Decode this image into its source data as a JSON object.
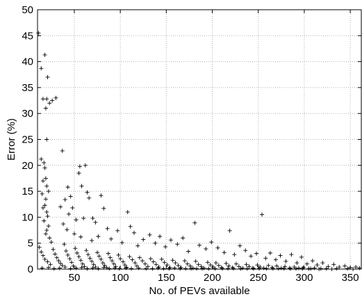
{
  "chart_data": {
    "type": "scatter",
    "title": "",
    "xlabel": "No. of PEVs available",
    "ylabel": "Error (%)",
    "xlim": [
      10,
      362
    ],
    "ylim": [
      0,
      50
    ],
    "grid": true,
    "marker": "+",
    "marker_color": "#000000",
    "xticks": [
      50,
      100,
      150,
      200,
      250,
      300,
      350
    ],
    "yticks": [
      0,
      5,
      10,
      15,
      20,
      25,
      30,
      35,
      40,
      45,
      50
    ],
    "series": [
      {
        "points": [
          [
            11,
            45.5
          ],
          [
            14,
            38.7
          ],
          [
            18,
            41.3
          ],
          [
            16,
            32.8
          ],
          [
            20,
            32.8
          ],
          [
            19,
            31.0
          ],
          [
            21,
            37.0
          ],
          [
            23,
            32.0
          ],
          [
            26,
            32.5
          ],
          [
            30,
            33.0
          ],
          [
            20,
            25.0
          ],
          [
            14,
            21.2
          ],
          [
            17,
            20.5
          ],
          [
            18,
            19.5
          ],
          [
            16,
            17.0
          ],
          [
            19,
            17.5
          ],
          [
            20,
            16.0
          ],
          [
            22,
            15.0
          ],
          [
            15,
            14.5
          ],
          [
            19,
            13.5
          ],
          [
            18,
            12.3
          ],
          [
            16,
            11.8
          ],
          [
            20,
            11.0
          ],
          [
            21,
            10.2
          ],
          [
            17,
            9.3
          ],
          [
            22,
            8.3
          ],
          [
            20,
            7.5
          ],
          [
            19,
            6.8
          ],
          [
            23,
            6.0
          ],
          [
            25,
            5.2
          ],
          [
            37,
            22.8
          ],
          [
            43,
            15.8
          ],
          [
            46,
            14.0
          ],
          [
            55,
            18.5
          ],
          [
            56,
            19.8
          ],
          [
            58,
            16.0
          ],
          [
            62,
            20.0
          ],
          [
            64,
            14.8
          ],
          [
            66,
            13.7
          ],
          [
            60,
            9.8
          ],
          [
            40,
            13.4
          ],
          [
            35,
            12.0
          ],
          [
            44,
            10.6
          ],
          [
            48,
            11.8
          ],
          [
            52,
            9.5
          ],
          [
            70,
            9.8
          ],
          [
            73,
            9.0
          ],
          [
            79,
            14.2
          ],
          [
            82,
            11.7
          ],
          [
            86,
            7.8
          ],
          [
            38,
            8.7
          ],
          [
            42,
            7.6
          ],
          [
            50,
            6.8
          ],
          [
            57,
            6.2
          ],
          [
            69,
            5.5
          ],
          [
            76,
            6.3
          ],
          [
            90,
            5.8
          ],
          [
            97,
            7.4
          ],
          [
            102,
            5.1
          ],
          [
            108,
            11.0
          ],
          [
            111,
            8.2
          ],
          [
            115,
            7.0
          ],
          [
            119,
            4.5
          ],
          [
            125,
            5.7
          ],
          [
            132,
            6.6
          ],
          [
            138,
            5.0
          ],
          [
            143,
            6.3
          ],
          [
            149,
            4.3
          ],
          [
            155,
            5.6
          ],
          [
            162,
            4.8
          ],
          [
            168,
            6.0
          ],
          [
            174,
            3.4
          ],
          [
            181,
            8.9
          ],
          [
            186,
            4.6
          ],
          [
            193,
            3.9
          ],
          [
            199,
            5.2
          ],
          [
            206,
            4.1
          ],
          [
            213,
            3.2
          ],
          [
            219,
            7.4
          ],
          [
            224,
            2.8
          ],
          [
            230,
            4.5
          ],
          [
            236,
            3.6
          ],
          [
            242,
            2.5
          ],
          [
            248,
            3.0
          ],
          [
            254,
            10.5
          ],
          [
            258,
            2.1
          ],
          [
            263,
            3.1
          ],
          [
            269,
            1.8
          ],
          [
            274,
            2.6
          ],
          [
            280,
            1.5
          ],
          [
            286,
            2.8
          ],
          [
            292,
            1.2
          ],
          [
            297,
            2.3
          ],
          [
            303,
            1.0
          ],
          [
            309,
            1.6
          ],
          [
            314,
            0.8
          ],
          [
            320,
            1.2
          ],
          [
            326,
            0.5
          ],
          [
            332,
            0.9
          ],
          [
            338,
            0.4
          ],
          [
            344,
            0.6
          ],
          [
            350,
            0.3
          ],
          [
            356,
            0.4
          ],
          [
            360,
            0.2
          ],
          [
            12,
            4.2
          ],
          [
            14,
            3.3
          ],
          [
            16,
            2.6
          ],
          [
            18,
            1.9
          ],
          [
            21,
            1.4
          ],
          [
            24,
            0.9
          ],
          [
            27,
            3.8
          ],
          [
            29,
            2.9
          ],
          [
            31,
            2.2
          ],
          [
            33,
            1.6
          ],
          [
            35,
            1.1
          ],
          [
            37,
            0.7
          ],
          [
            39,
            4.8
          ],
          [
            41,
            3.5
          ],
          [
            43,
            2.7
          ],
          [
            45,
            2.0
          ],
          [
            47,
            1.3
          ],
          [
            49,
            0.6
          ],
          [
            51,
            4.0
          ],
          [
            53,
            3.1
          ],
          [
            55,
            2.4
          ],
          [
            57,
            1.7
          ],
          [
            59,
            1.0
          ],
          [
            61,
            0.5
          ],
          [
            63,
            3.6
          ],
          [
            65,
            2.8
          ],
          [
            67,
            2.1
          ],
          [
            69,
            1.5
          ],
          [
            71,
            0.9
          ],
          [
            73,
            0.4
          ],
          [
            75,
            3.2
          ],
          [
            77,
            2.5
          ],
          [
            79,
            1.9
          ],
          [
            81,
            1.2
          ],
          [
            83,
            0.7
          ],
          [
            85,
            0.3
          ],
          [
            87,
            3.0
          ],
          [
            89,
            2.2
          ],
          [
            91,
            1.6
          ],
          [
            93,
            1.0
          ],
          [
            95,
            0.5
          ],
          [
            98,
            2.7
          ],
          [
            100,
            2.0
          ],
          [
            103,
            1.4
          ],
          [
            105,
            0.8
          ],
          [
            107,
            0.3
          ],
          [
            110,
            2.4
          ],
          [
            113,
            1.8
          ],
          [
            116,
            1.2
          ],
          [
            118,
            0.6
          ],
          [
            121,
            2.2
          ],
          [
            124,
            1.6
          ],
          [
            127,
            1.0
          ],
          [
            130,
            0.5
          ],
          [
            133,
            2.0
          ],
          [
            136,
            1.4
          ],
          [
            139,
            0.9
          ],
          [
            142,
            0.4
          ],
          [
            145,
            1.9
          ],
          [
            148,
            1.3
          ],
          [
            151,
            0.8
          ],
          [
            154,
            0.3
          ],
          [
            157,
            1.7
          ],
          [
            160,
            1.2
          ],
          [
            163,
            0.7
          ],
          [
            166,
            0.3
          ],
          [
            170,
            1.6
          ],
          [
            173,
            1.0
          ],
          [
            176,
            0.6
          ],
          [
            179,
            0.2
          ],
          [
            182,
            1.5
          ],
          [
            185,
            0.9
          ],
          [
            188,
            0.5
          ],
          [
            191,
            0.2
          ],
          [
            195,
            1.3
          ],
          [
            198,
            0.8
          ],
          [
            201,
            0.4
          ],
          [
            204,
            1.2
          ],
          [
            207,
            0.7
          ],
          [
            210,
            0.3
          ],
          [
            215,
            1.1
          ],
          [
            218,
            0.6
          ],
          [
            222,
            0.3
          ],
          [
            226,
            1.0
          ],
          [
            229,
            0.5
          ],
          [
            233,
            0.2
          ],
          [
            237,
            0.9
          ],
          [
            240,
            0.5
          ],
          [
            244,
            0.2
          ],
          [
            249,
            0.8
          ],
          [
            252,
            0.4
          ],
          [
            256,
            0.2
          ],
          [
            261,
            0.7
          ],
          [
            265,
            0.3
          ],
          [
            270,
            0.6
          ],
          [
            275,
            0.2
          ],
          [
            279,
            0.5
          ],
          [
            284,
            0.2
          ],
          [
            289,
            0.4
          ],
          [
            294,
            0.2
          ],
          [
            299,
            0.3
          ],
          [
            305,
            0.1
          ],
          [
            311,
            0.2
          ],
          [
            318,
            0.1
          ],
          [
            324,
            0.1
          ],
          [
            330,
            0.0
          ],
          [
            15,
            0.2
          ],
          [
            22,
            0.3
          ],
          [
            28,
            0.1
          ],
          [
            34,
            0.2
          ],
          [
            40,
            0.4
          ],
          [
            46,
            0.1
          ],
          [
            52,
            0.2
          ],
          [
            58,
            0.3
          ],
          [
            64,
            0.1
          ],
          [
            70,
            0.2
          ],
          [
            76,
            0.1
          ],
          [
            82,
            0.3
          ],
          [
            88,
            0.1
          ],
          [
            94,
            0.2
          ],
          [
            99,
            0.1
          ],
          [
            106,
            0.2
          ],
          [
            112,
            0.1
          ],
          [
            120,
            0.2
          ],
          [
            128,
            0.1
          ],
          [
            135,
            0.1
          ],
          [
            141,
            0.2
          ],
          [
            147,
            0.1
          ],
          [
            153,
            0.1
          ],
          [
            159,
            0.2
          ],
          [
            165,
            0.1
          ],
          [
            171,
            0.1
          ],
          [
            177,
            0.1
          ],
          [
            183,
            0.1
          ],
          [
            189,
            0.1
          ],
          [
            196,
            0.1
          ],
          [
            203,
            0.1
          ],
          [
            211,
            0.1
          ],
          [
            217,
            0.1
          ],
          [
            223,
            0.1
          ],
          [
            231,
            0.1
          ],
          [
            238,
            0.1
          ],
          [
            245,
            0.1
          ],
          [
            251,
            0.1
          ],
          [
            259,
            0.1
          ],
          [
            266,
            0.1
          ],
          [
            272,
            0.1
          ],
          [
            278,
            0.1
          ],
          [
            285,
            0.1
          ],
          [
            291,
            0.1
          ],
          [
            298,
            0.1
          ],
          [
            307,
            0.1
          ],
          [
            316,
            0.0
          ],
          [
            335,
            0.1
          ],
          [
            347,
            0.1
          ],
          [
            353,
            0.0
          ]
        ]
      }
    ]
  }
}
